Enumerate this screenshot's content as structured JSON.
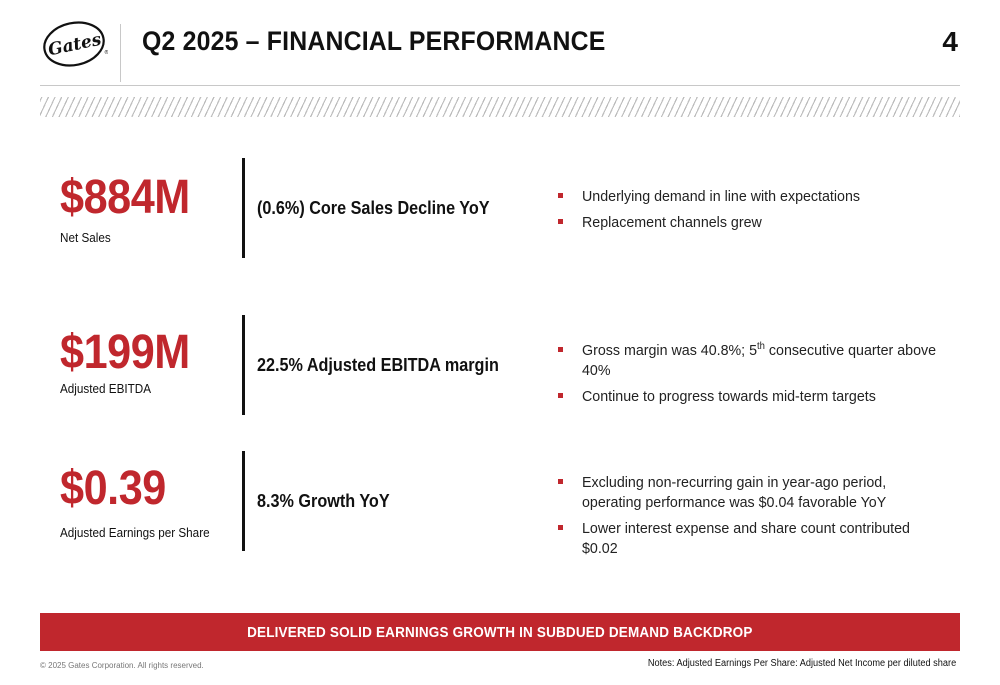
{
  "header": {
    "logo_text": "Gates",
    "title": "Q2 2025 – FINANCIAL PERFORMANCE",
    "page_number": "4"
  },
  "metrics": [
    {
      "value": "$884M",
      "label": "Net Sales",
      "headline": "(0.6%) Core Sales Decline YoY",
      "bullets": [
        {
          "text": "Underlying demand in line with expectations"
        },
        {
          "text": "Replacement channels grew"
        }
      ]
    },
    {
      "value": "$199M",
      "label": "Adjusted EBITDA",
      "headline": "22.5% Adjusted EBITDA margin",
      "bullets": [
        {
          "pre": "Gross margin was 40.8%; 5",
          "sup": "th",
          "post": " consecutive quarter above 40%"
        },
        {
          "text": "Continue to progress towards mid-term targets"
        }
      ]
    },
    {
      "value": "$0.39",
      "label": "Adjusted Earnings per Share",
      "headline": "8.3% Growth YoY",
      "bullets": [
        {
          "text": "Excluding non-recurring gain in year-ago period, operating performance was $0.04 favorable YoY"
        },
        {
          "text": "Lower interest expense and share count contributed $0.02"
        }
      ]
    }
  ],
  "banner": {
    "text": "DELIVERED SOLID EARNINGS GROWTH IN SUBDUED DEMAND BACKDROP"
  },
  "footer": {
    "copyright": "© 2025 Gates Corporation. All rights reserved.",
    "notes": "Notes: Adjusted Earnings Per Share: Adjusted Net Income per diluted share"
  },
  "colors": {
    "accent": "#c0272d",
    "text": "#111111",
    "rule": "#c8c8c8"
  }
}
